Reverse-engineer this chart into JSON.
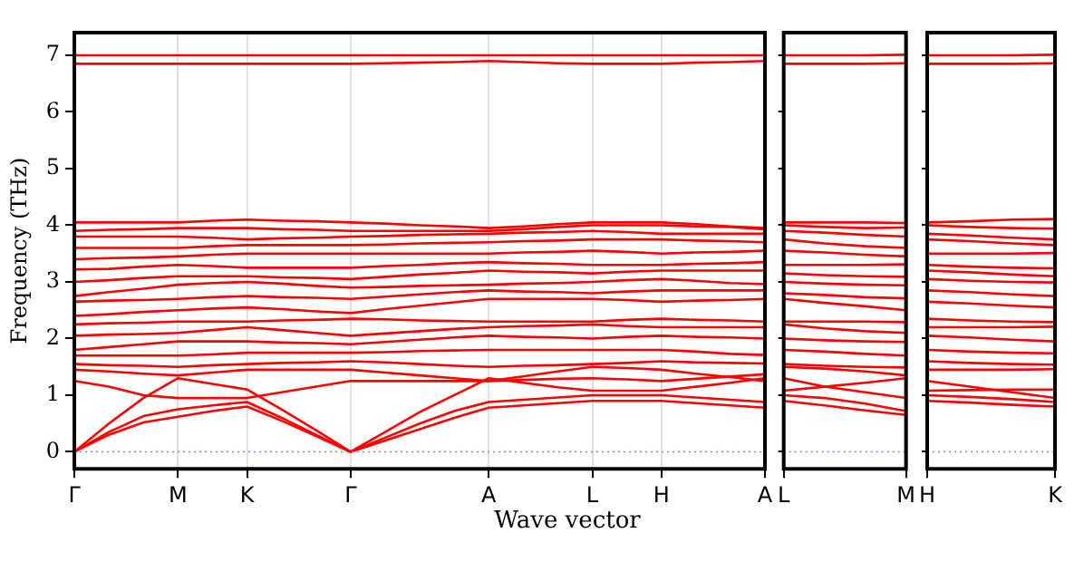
{
  "chart_data": [
    {
      "type": "line",
      "ylabel": "Frequency (THz)",
      "xlabel": "Wave vector",
      "categories": [
        "Γ",
        null,
        null,
        "M",
        null,
        "K",
        null,
        null,
        "Γ",
        null,
        null,
        null,
        "A",
        null,
        null,
        "L",
        null,
        "H",
        null,
        null,
        "A"
      ],
      "ylim": [
        -0.3,
        7.4
      ],
      "yticks": [
        0,
        1,
        2,
        3,
        4,
        5,
        6,
        7
      ],
      "grid": "x",
      "ref_lines": [
        {
          "axis": "y",
          "value": 0,
          "color": "#8080ff",
          "line_style": "dotted"
        }
      ],
      "series": [
        {
          "color": "#ff0000",
          "values": [
            0,
            0.3,
            0.52,
            0.62,
            0.72,
            0.8,
            0.55,
            0.28,
            0,
            0.2,
            0.4,
            0.6,
            0.78,
            0.82,
            0.86,
            0.9,
            0.9,
            0.9,
            0.86,
            0.82,
            0.78
          ]
        },
        {
          "color": "#ff0000",
          "values": [
            0,
            0.35,
            0.63,
            0.75,
            0.82,
            0.88,
            0.6,
            0.3,
            0,
            0.25,
            0.5,
            0.72,
            0.88,
            0.92,
            0.96,
            1.0,
            1.0,
            1.0,
            0.96,
            0.92,
            0.88
          ]
        },
        {
          "color": "#ff0000",
          "values": [
            0,
            0.5,
            0.95,
            1.3,
            1.2,
            1.1,
            0.75,
            0.38,
            0,
            0.35,
            0.7,
            1.0,
            1.3,
            1.22,
            1.14,
            1.08,
            1.08,
            1.08,
            1.15,
            1.22,
            1.3
          ]
        },
        {
          "color": "#ff0000",
          "values": [
            1.25,
            1.15,
            1.0,
            0.95,
            0.95,
            0.95,
            1.05,
            1.15,
            1.25,
            1.25,
            1.25,
            1.25,
            1.25,
            1.27,
            1.29,
            1.3,
            1.28,
            1.25,
            1.29,
            1.33,
            1.37
          ]
        },
        {
          "color": "#ff0000",
          "values": [
            1.45,
            1.42,
            1.38,
            1.35,
            1.4,
            1.45,
            1.45,
            1.45,
            1.45,
            1.4,
            1.35,
            1.3,
            1.25,
            1.33,
            1.42,
            1.5,
            1.48,
            1.45,
            1.38,
            1.32,
            1.25
          ]
        },
        {
          "color": "#ff0000",
          "values": [
            1.55,
            1.53,
            1.52,
            1.5,
            1.53,
            1.55,
            1.57,
            1.58,
            1.6,
            1.58,
            1.55,
            1.52,
            1.5,
            1.52,
            1.53,
            1.55,
            1.57,
            1.6,
            1.58,
            1.57,
            1.56
          ]
        },
        {
          "color": "#ff0000",
          "values": [
            1.7,
            1.7,
            1.7,
            1.7,
            1.72,
            1.75,
            1.75,
            1.75,
            1.75,
            1.76,
            1.78,
            1.79,
            1.8,
            1.8,
            1.8,
            1.8,
            1.8,
            1.8,
            1.77,
            1.73,
            1.71
          ]
        },
        {
          "color": "#ff0000",
          "values": [
            1.8,
            1.85,
            1.9,
            1.95,
            1.95,
            1.95,
            1.93,
            1.92,
            1.9,
            1.94,
            1.98,
            2.02,
            2.05,
            2.03,
            2.02,
            2.0,
            2.03,
            2.05,
            2.03,
            2.02,
            2.0
          ]
        },
        {
          "color": "#ff0000",
          "values": [
            2.05,
            2.07,
            2.08,
            2.1,
            2.15,
            2.2,
            2.15,
            2.1,
            2.05,
            2.09,
            2.13,
            2.17,
            2.2,
            2.22,
            2.23,
            2.25,
            2.22,
            2.2,
            2.2,
            2.2,
            2.2
          ]
        },
        {
          "color": "#ff0000",
          "values": [
            2.25,
            2.27,
            2.28,
            2.3,
            2.3,
            2.3,
            2.32,
            2.33,
            2.35,
            2.34,
            2.32,
            2.31,
            2.3,
            2.3,
            2.3,
            2.3,
            2.33,
            2.35,
            2.33,
            2.32,
            2.3
          ]
        },
        {
          "color": "#ff0000",
          "values": [
            2.4,
            2.43,
            2.47,
            2.5,
            2.53,
            2.55,
            2.52,
            2.48,
            2.45,
            2.52,
            2.58,
            2.64,
            2.7,
            2.7,
            2.7,
            2.7,
            2.68,
            2.65,
            2.67,
            2.68,
            2.7
          ]
        },
        {
          "color": "#ff0000",
          "values": [
            2.65,
            2.67,
            2.68,
            2.7,
            2.73,
            2.75,
            2.73,
            2.72,
            2.7,
            2.74,
            2.78,
            2.82,
            2.85,
            2.83,
            2.82,
            2.8,
            2.83,
            2.85,
            2.85,
            2.85,
            2.85
          ]
        },
        {
          "color": "#ff0000",
          "values": [
            2.75,
            2.82,
            2.88,
            2.95,
            2.98,
            3.0,
            2.97,
            2.93,
            2.9,
            2.91,
            2.93,
            2.94,
            2.95,
            2.97,
            2.98,
            3.0,
            3.03,
            3.05,
            3.02,
            2.98,
            2.96
          ]
        },
        {
          "color": "#ff0000",
          "values": [
            3.0,
            3.03,
            3.07,
            3.1,
            3.1,
            3.1,
            3.08,
            3.07,
            3.05,
            3.09,
            3.13,
            3.16,
            3.2,
            3.18,
            3.17,
            3.15,
            3.18,
            3.2,
            3.2,
            3.2,
            3.2
          ]
        },
        {
          "color": "#ff0000",
          "values": [
            3.22,
            3.23,
            3.27,
            3.3,
            3.28,
            3.25,
            3.25,
            3.25,
            3.25,
            3.28,
            3.3,
            3.33,
            3.35,
            3.33,
            3.32,
            3.3,
            3.3,
            3.3,
            3.32,
            3.33,
            3.35
          ]
        },
        {
          "color": "#ff0000",
          "values": [
            3.4,
            3.42,
            3.43,
            3.45,
            3.48,
            3.5,
            3.5,
            3.5,
            3.5,
            3.5,
            3.5,
            3.5,
            3.5,
            3.52,
            3.53,
            3.55,
            3.53,
            3.5,
            3.52,
            3.53,
            3.55
          ]
        },
        {
          "color": "#ff0000",
          "values": [
            3.6,
            3.6,
            3.6,
            3.6,
            3.63,
            3.65,
            3.65,
            3.65,
            3.65,
            3.66,
            3.68,
            3.69,
            3.7,
            3.72,
            3.73,
            3.75,
            3.75,
            3.75,
            3.73,
            3.72,
            3.7
          ]
        },
        {
          "color": "#ff0000",
          "values": [
            3.8,
            3.8,
            3.8,
            3.8,
            3.78,
            3.75,
            3.77,
            3.78,
            3.8,
            3.81,
            3.83,
            3.84,
            3.85,
            3.87,
            3.88,
            3.9,
            3.88,
            3.85,
            3.85,
            3.85,
            3.85
          ]
        },
        {
          "color": "#ff0000",
          "values": [
            3.9,
            3.92,
            3.93,
            3.95,
            3.95,
            3.95,
            3.93,
            3.92,
            3.9,
            3.9,
            3.9,
            3.9,
            3.9,
            3.93,
            3.97,
            4.0,
            4.0,
            4.0,
            3.98,
            3.97,
            3.93
          ]
        },
        {
          "color": "#ff0000",
          "values": [
            4.05,
            4.05,
            4.05,
            4.05,
            4.08,
            4.1,
            4.08,
            4.07,
            4.05,
            4.03,
            4.0,
            3.98,
            3.95,
            3.98,
            4.02,
            4.05,
            4.05,
            4.05,
            4.02,
            3.98,
            3.95
          ]
        },
        {
          "color": "#ff0000",
          "values": [
            6.85,
            6.85,
            6.85,
            6.85,
            6.85,
            6.85,
            6.85,
            6.85,
            6.85,
            6.86,
            6.87,
            6.88,
            6.9,
            6.88,
            6.86,
            6.85,
            6.85,
            6.85,
            6.87,
            6.88,
            6.9
          ]
        },
        {
          "color": "#ff0000",
          "values": [
            7.0,
            7.0,
            7.0,
            7.0,
            7.0,
            7.0,
            7.0,
            7.0,
            7.0,
            7.0,
            7.0,
            7.0,
            7.0,
            7.0,
            7.0,
            7.0,
            7.0,
            7.0,
            7.0,
            7.0,
            7.0
          ]
        }
      ]
    },
    {
      "type": "line",
      "categories": [
        "L",
        null,
        null,
        "M"
      ],
      "ylim": [
        -0.3,
        7.4
      ],
      "yticks": [
        {
          "value": 0,
          "label": null
        },
        {
          "value": 1,
          "label": null
        },
        {
          "value": 2,
          "label": null
        },
        {
          "value": 3,
          "label": null
        },
        {
          "value": 4,
          "label": null
        },
        {
          "value": 5,
          "label": null
        },
        {
          "value": 6,
          "label": null
        },
        {
          "value": 7,
          "label": null
        }
      ],
      "tick_labels": "x",
      "ref_lines": [
        {
          "axis": "y",
          "value": 0,
          "color": "#8080ff",
          "line_style": "dotted"
        }
      ],
      "series": [
        {
          "color": "#ff0000",
          "values": [
            0.9,
            0.82,
            0.73,
            0.65
          ]
        },
        {
          "color": "#ff0000",
          "values": [
            1.0,
            0.95,
            0.85,
            0.72
          ]
        },
        {
          "color": "#ff0000",
          "values": [
            1.08,
            1.15,
            1.22,
            1.3
          ]
        },
        {
          "color": "#ff0000",
          "values": [
            1.3,
            1.15,
            1.05,
            0.95
          ]
        },
        {
          "color": "#ff0000",
          "values": [
            1.5,
            1.47,
            1.42,
            1.35
          ]
        },
        {
          "color": "#ff0000",
          "values": [
            1.55,
            1.52,
            1.5,
            1.49
          ]
        },
        {
          "color": "#ff0000",
          "values": [
            1.8,
            1.77,
            1.73,
            1.7
          ]
        },
        {
          "color": "#ff0000",
          "values": [
            2.0,
            1.97,
            1.95,
            1.94
          ]
        },
        {
          "color": "#ff0000",
          "values": [
            2.25,
            2.18,
            2.13,
            2.1
          ]
        },
        {
          "color": "#ff0000",
          "values": [
            2.3,
            2.3,
            2.3,
            2.29
          ]
        },
        {
          "color": "#ff0000",
          "values": [
            2.7,
            2.63,
            2.57,
            2.5
          ]
        },
        {
          "color": "#ff0000",
          "values": [
            2.8,
            2.77,
            2.73,
            2.71
          ]
        },
        {
          "color": "#ff0000",
          "values": [
            3.0,
            2.97,
            2.95,
            2.94
          ]
        },
        {
          "color": "#ff0000",
          "values": [
            3.15,
            3.12,
            3.1,
            3.09
          ]
        },
        {
          "color": "#ff0000",
          "values": [
            3.3,
            3.3,
            3.3,
            3.31
          ]
        },
        {
          "color": "#ff0000",
          "values": [
            3.55,
            3.52,
            3.48,
            3.45
          ]
        },
        {
          "color": "#ff0000",
          "values": [
            3.75,
            3.68,
            3.63,
            3.6
          ]
        },
        {
          "color": "#ff0000",
          "values": [
            3.9,
            3.87,
            3.83,
            3.8
          ]
        },
        {
          "color": "#ff0000",
          "values": [
            4.0,
            3.97,
            3.95,
            3.96
          ]
        },
        {
          "color": "#ff0000",
          "values": [
            4.05,
            4.05,
            4.05,
            4.04
          ]
        },
        {
          "color": "#ff0000",
          "values": [
            6.85,
            6.85,
            6.85,
            6.86
          ]
        },
        {
          "color": "#ff0000",
          "values": [
            7.0,
            7.0,
            7.0,
            7.01
          ]
        }
      ]
    },
    {
      "type": "line",
      "categories": [
        "H",
        null,
        null,
        "K"
      ],
      "ylim": [
        -0.3,
        7.4
      ],
      "yticks": [
        {
          "value": 0,
          "label": null
        },
        {
          "value": 1,
          "label": null
        },
        {
          "value": 2,
          "label": null
        },
        {
          "value": 3,
          "label": null
        },
        {
          "value": 4,
          "label": null
        },
        {
          "value": 5,
          "label": null
        },
        {
          "value": 6,
          "label": null
        },
        {
          "value": 7,
          "label": null
        }
      ],
      "tick_labels": "x",
      "ref_lines": [
        {
          "axis": "y",
          "value": 0,
          "color": "#8080ff",
          "line_style": "dotted"
        }
      ],
      "series": [
        {
          "color": "#ff0000",
          "values": [
            0.9,
            0.87,
            0.83,
            0.8
          ]
        },
        {
          "color": "#ff0000",
          "values": [
            1.0,
            0.97,
            0.93,
            0.88
          ]
        },
        {
          "color": "#ff0000",
          "values": [
            1.08,
            1.09,
            1.1,
            1.1
          ]
        },
        {
          "color": "#ff0000",
          "values": [
            1.25,
            1.15,
            1.05,
            0.95
          ]
        },
        {
          "color": "#ff0000",
          "values": [
            1.45,
            1.45,
            1.45,
            1.46
          ]
        },
        {
          "color": "#ff0000",
          "values": [
            1.6,
            1.57,
            1.55,
            1.54
          ]
        },
        {
          "color": "#ff0000",
          "values": [
            1.8,
            1.77,
            1.75,
            1.74
          ]
        },
        {
          "color": "#ff0000",
          "values": [
            2.05,
            2.02,
            1.98,
            1.95
          ]
        },
        {
          "color": "#ff0000",
          "values": [
            2.2,
            2.2,
            2.2,
            2.21
          ]
        },
        {
          "color": "#ff0000",
          "values": [
            2.35,
            2.32,
            2.3,
            2.29
          ]
        },
        {
          "color": "#ff0000",
          "values": [
            2.65,
            2.62,
            2.58,
            2.55
          ]
        },
        {
          "color": "#ff0000",
          "values": [
            2.85,
            2.82,
            2.78,
            2.75
          ]
        },
        {
          "color": "#ff0000",
          "values": [
            3.05,
            3.02,
            3.0,
            2.99
          ]
        },
        {
          "color": "#ff0000",
          "values": [
            3.2,
            3.17,
            3.13,
            3.1
          ]
        },
        {
          "color": "#ff0000",
          "values": [
            3.3,
            3.27,
            3.25,
            3.24
          ]
        },
        {
          "color": "#ff0000",
          "values": [
            3.5,
            3.5,
            3.5,
            3.51
          ]
        },
        {
          "color": "#ff0000",
          "values": [
            3.75,
            3.72,
            3.68,
            3.65
          ]
        },
        {
          "color": "#ff0000",
          "values": [
            3.85,
            3.82,
            3.78,
            3.75
          ]
        },
        {
          "color": "#ff0000",
          "values": [
            4.0,
            3.97,
            3.95,
            3.94
          ]
        },
        {
          "color": "#ff0000",
          "values": [
            4.05,
            4.07,
            4.1,
            4.11
          ]
        },
        {
          "color": "#ff0000",
          "values": [
            6.85,
            6.85,
            6.85,
            6.86
          ]
        },
        {
          "color": "#ff0000",
          "values": [
            7.0,
            7.0,
            7.0,
            7.01
          ]
        }
      ]
    }
  ]
}
